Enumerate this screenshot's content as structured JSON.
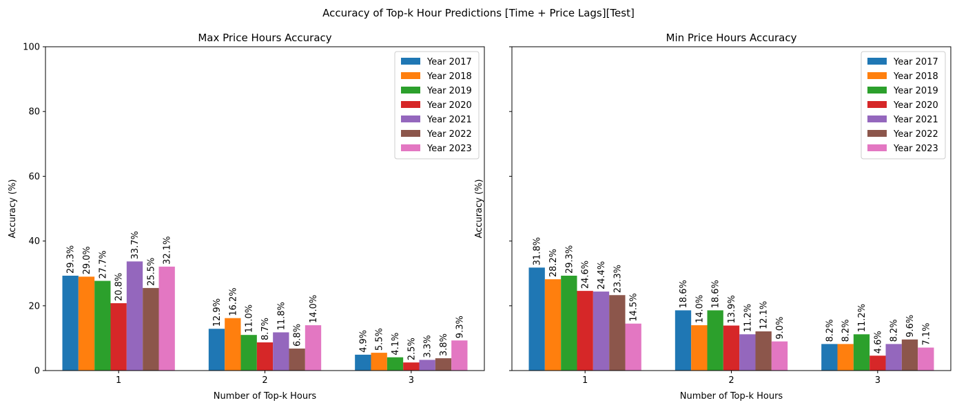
{
  "figure_title": "Accuracy of Top-k Hour Predictions [Time + Price Lags][Test]",
  "colors": [
    "#1f77b4",
    "#ff7f0e",
    "#2ca02c",
    "#d62728",
    "#9467bd",
    "#8c564b",
    "#e377c2"
  ],
  "chart_data": [
    {
      "type": "bar",
      "title": "Max Price Hours Accuracy",
      "xlabel": "Number of Top-k Hours",
      "ylabel": "Accuracy (%)",
      "ylim": [
        0,
        100
      ],
      "yticks": [
        0,
        20,
        40,
        60,
        80,
        100
      ],
      "categories": [
        "1",
        "2",
        "3"
      ],
      "legend_position": "top-right",
      "series": [
        {
          "name": "Year 2017",
          "values": [
            29.3,
            12.9,
            4.9
          ],
          "labels": [
            "29.3%",
            "12.9%",
            "4.9%"
          ]
        },
        {
          "name": "Year 2018",
          "values": [
            29.0,
            16.2,
            5.5
          ],
          "labels": [
            "29.0%",
            "16.2%",
            "5.5%"
          ]
        },
        {
          "name": "Year 2019",
          "values": [
            27.7,
            11.0,
            4.1
          ],
          "labels": [
            "27.7%",
            "11.0%",
            "4.1%"
          ]
        },
        {
          "name": "Year 2020",
          "values": [
            20.8,
            8.7,
            2.5
          ],
          "labels": [
            "20.8%",
            "8.7%",
            "2.5%"
          ]
        },
        {
          "name": "Year 2021",
          "values": [
            33.7,
            11.8,
            3.3
          ],
          "labels": [
            "33.7%",
            "11.8%",
            "3.3%"
          ]
        },
        {
          "name": "Year 2022",
          "values": [
            25.5,
            6.8,
            3.8
          ],
          "labels": [
            "25.5%",
            "6.8%",
            "3.8%"
          ]
        },
        {
          "name": "Year 2023",
          "values": [
            32.1,
            14.0,
            9.3
          ],
          "labels": [
            "32.1%",
            "14.0%",
            "9.3%"
          ]
        }
      ]
    },
    {
      "type": "bar",
      "title": "Min Price Hours Accuracy",
      "xlabel": "Number of Top-k Hours",
      "ylabel": "Accuracy (%)",
      "ylim": [
        0,
        100
      ],
      "yticks": [
        0,
        20,
        40,
        60,
        80,
        100
      ],
      "categories": [
        "1",
        "2",
        "3"
      ],
      "legend_position": "top-right",
      "series": [
        {
          "name": "Year 2017",
          "values": [
            31.8,
            18.6,
            8.2
          ],
          "labels": [
            "31.8%",
            "18.6%",
            "8.2%"
          ]
        },
        {
          "name": "Year 2018",
          "values": [
            28.2,
            14.0,
            8.2
          ],
          "labels": [
            "28.2%",
            "14.0%",
            "8.2%"
          ]
        },
        {
          "name": "Year 2019",
          "values": [
            29.3,
            18.6,
            11.2
          ],
          "labels": [
            "29.3%",
            "18.6%",
            "11.2%"
          ]
        },
        {
          "name": "Year 2020",
          "values": [
            24.6,
            13.9,
            4.6
          ],
          "labels": [
            "24.6%",
            "13.9%",
            "4.6%"
          ]
        },
        {
          "name": "Year 2021",
          "values": [
            24.4,
            11.2,
            8.2
          ],
          "labels": [
            "24.4%",
            "11.2%",
            "8.2%"
          ]
        },
        {
          "name": "Year 2022",
          "values": [
            23.3,
            12.1,
            9.6
          ],
          "labels": [
            "23.3%",
            "12.1%",
            "9.6%"
          ]
        },
        {
          "name": "Year 2023",
          "values": [
            14.5,
            9.0,
            7.1
          ],
          "labels": [
            "14.5%",
            "9.0%",
            "7.1%"
          ]
        }
      ]
    }
  ]
}
